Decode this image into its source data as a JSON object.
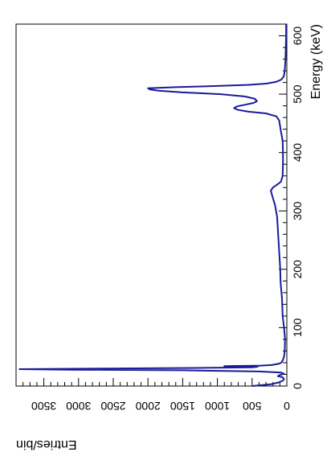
{
  "chart_data": {
    "type": "line",
    "orientation": "rotated-90",
    "xlabel": "Energy (keV)",
    "ylabel": "Entries/bin",
    "xlim": [
      0,
      620
    ],
    "ylim": [
      0,
      3900
    ],
    "x_ticks": [
      0,
      100,
      200,
      300,
      400,
      500,
      600
    ],
    "y_ticks": [
      0,
      500,
      1000,
      1500,
      2000,
      2500,
      3000,
      3500
    ],
    "line_color": "#1a1a9a",
    "series": [
      {
        "x": [
          0,
          3,
          6,
          9,
          12,
          15,
          17,
          19,
          21,
          23,
          25,
          27,
          28,
          29,
          30,
          31,
          32,
          33,
          34,
          35,
          36,
          38,
          40,
          45,
          50,
          60,
          80,
          100,
          120,
          150,
          170,
          180,
          200,
          230,
          260,
          290,
          310,
          320,
          330,
          335,
          340,
          345,
          350,
          360,
          380,
          400,
          420,
          440,
          455,
          462,
          467,
          470,
          473,
          476,
          479,
          482,
          485,
          488,
          492,
          496,
          500,
          503,
          506,
          508,
          510,
          512,
          514,
          516,
          518,
          521,
          525,
          530,
          540,
          560,
          580,
          600,
          620
        ],
        "y": [
          500,
          230,
          120,
          60,
          40,
          60,
          130,
          100,
          40,
          80,
          400,
          1500,
          3100,
          3850,
          2600,
          1300,
          500,
          420,
          900,
          380,
          220,
          120,
          80,
          55,
          40,
          30,
          25,
          40,
          60,
          70,
          85,
          90,
          95,
          110,
          125,
          140,
          170,
          195,
          220,
          230,
          200,
          140,
          85,
          60,
          55,
          55,
          60,
          90,
          110,
          150,
          300,
          550,
          700,
          760,
          720,
          600,
          480,
          430,
          460,
          600,
          950,
          1500,
          1850,
          1970,
          2000,
          1600,
          1000,
          550,
          300,
          160,
          80,
          45,
          30,
          20,
          15,
          10,
          10
        ]
      }
    ]
  }
}
